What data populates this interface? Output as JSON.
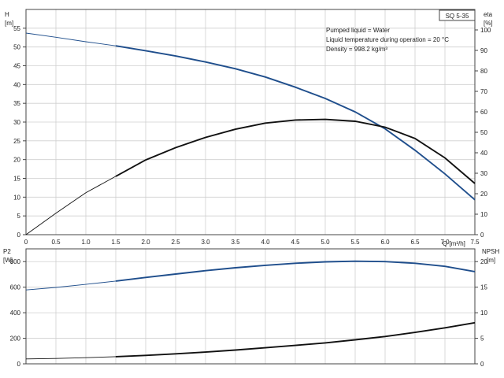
{
  "chart_data": [
    {
      "type": "line",
      "title": "SQ 5-35",
      "notes": [
        "Pumped liquid = Water",
        "Liquid temperature during operation = 20 °C",
        "Density = 998.2 kg/m³"
      ],
      "xlabel": "Q [m³/h]",
      "xlim": [
        0,
        7.5
      ],
      "xticks": [
        "0",
        "0.5",
        "1.0",
        "1.5",
        "2.0",
        "2.5",
        "3.0",
        "3.5",
        "4.0",
        "4.5",
        "5.0",
        "5.5",
        "6.0",
        "6.5",
        "7.0",
        "7.5"
      ],
      "y_left": {
        "label_top": "H",
        "label_unit": "[m]",
        "lim": [
          0,
          60
        ],
        "ticks": [
          "0",
          "5",
          "10",
          "15",
          "20",
          "25",
          "30",
          "35",
          "40",
          "45",
          "50",
          "55"
        ]
      },
      "y_right": {
        "label_top": "eta",
        "label_unit": "[%]",
        "lim": [
          0,
          110
        ],
        "ticks": [
          "0",
          "10",
          "20",
          "30",
          "40",
          "50",
          "60",
          "70",
          "80",
          "90",
          "100"
        ]
      },
      "grid": true,
      "series": [
        {
          "axis": "left",
          "color": "#1f4e8c",
          "x": [
            0,
            0.5,
            1.0,
            1.5,
            2.0,
            2.5,
            3.0,
            3.5,
            4.0,
            4.5,
            5.0,
            5.5,
            6.0,
            6.5,
            7.0,
            7.5
          ],
          "y": [
            53.7,
            52.6,
            51.4,
            50.3,
            49.0,
            47.6,
            46.0,
            44.2,
            42.0,
            39.3,
            36.3,
            32.7,
            28.2,
            22.5,
            16.2,
            9.3
          ],
          "thin_until_x": 1.5
        },
        {
          "axis": "right",
          "color": "#111111",
          "x": [
            0,
            0.5,
            1.0,
            1.5,
            2.0,
            2.5,
            3.0,
            3.5,
            4.0,
            4.5,
            5.0,
            5.5,
            6.0,
            6.5,
            7.0,
            7.5
          ],
          "y": [
            0,
            10.5,
            20.5,
            28.5,
            36.5,
            42.5,
            47.5,
            51.5,
            54.5,
            56.0,
            56.3,
            55.4,
            52.5,
            47.0,
            37.5,
            25.0
          ],
          "thin_until_x": 1.5
        }
      ]
    },
    {
      "type": "line",
      "xlim": [
        0,
        7.5
      ],
      "y_left": {
        "label_top": "P2",
        "label_unit": "[W]",
        "lim": [
          0,
          900
        ],
        "ticks": [
          "0",
          "200",
          "400",
          "600",
          "800"
        ]
      },
      "y_right": {
        "label_top": "NPSH",
        "label_unit": "[m]",
        "lim": [
          0,
          22.5
        ],
        "ticks": [
          "0",
          "5",
          "10",
          "15",
          "20"
        ]
      },
      "grid": true,
      "series": [
        {
          "axis": "left",
          "color": "#1f4e8c",
          "x": [
            0,
            0.5,
            1.0,
            1.5,
            2.0,
            2.5,
            3.0,
            3.5,
            4.0,
            4.5,
            5.0,
            5.5,
            6.0,
            6.5,
            7.0,
            7.5
          ],
          "y": [
            578,
            598,
            622,
            648,
            676,
            703,
            729,
            752,
            771,
            787,
            798,
            803,
            800,
            787,
            763,
            722
          ],
          "thin_until_x": 1.5
        },
        {
          "axis": "right",
          "color": "#111111",
          "x": [
            0,
            0.5,
            1.0,
            1.5,
            2.0,
            2.5,
            3.0,
            3.5,
            4.0,
            4.5,
            5.0,
            5.5,
            6.0,
            6.5,
            7.0,
            7.5
          ],
          "y": [
            0.95,
            1.05,
            1.2,
            1.4,
            1.65,
            1.95,
            2.3,
            2.7,
            3.15,
            3.6,
            4.1,
            4.7,
            5.35,
            6.15,
            7.05,
            8.05
          ],
          "thin_until_x": 1.5
        }
      ]
    }
  ]
}
